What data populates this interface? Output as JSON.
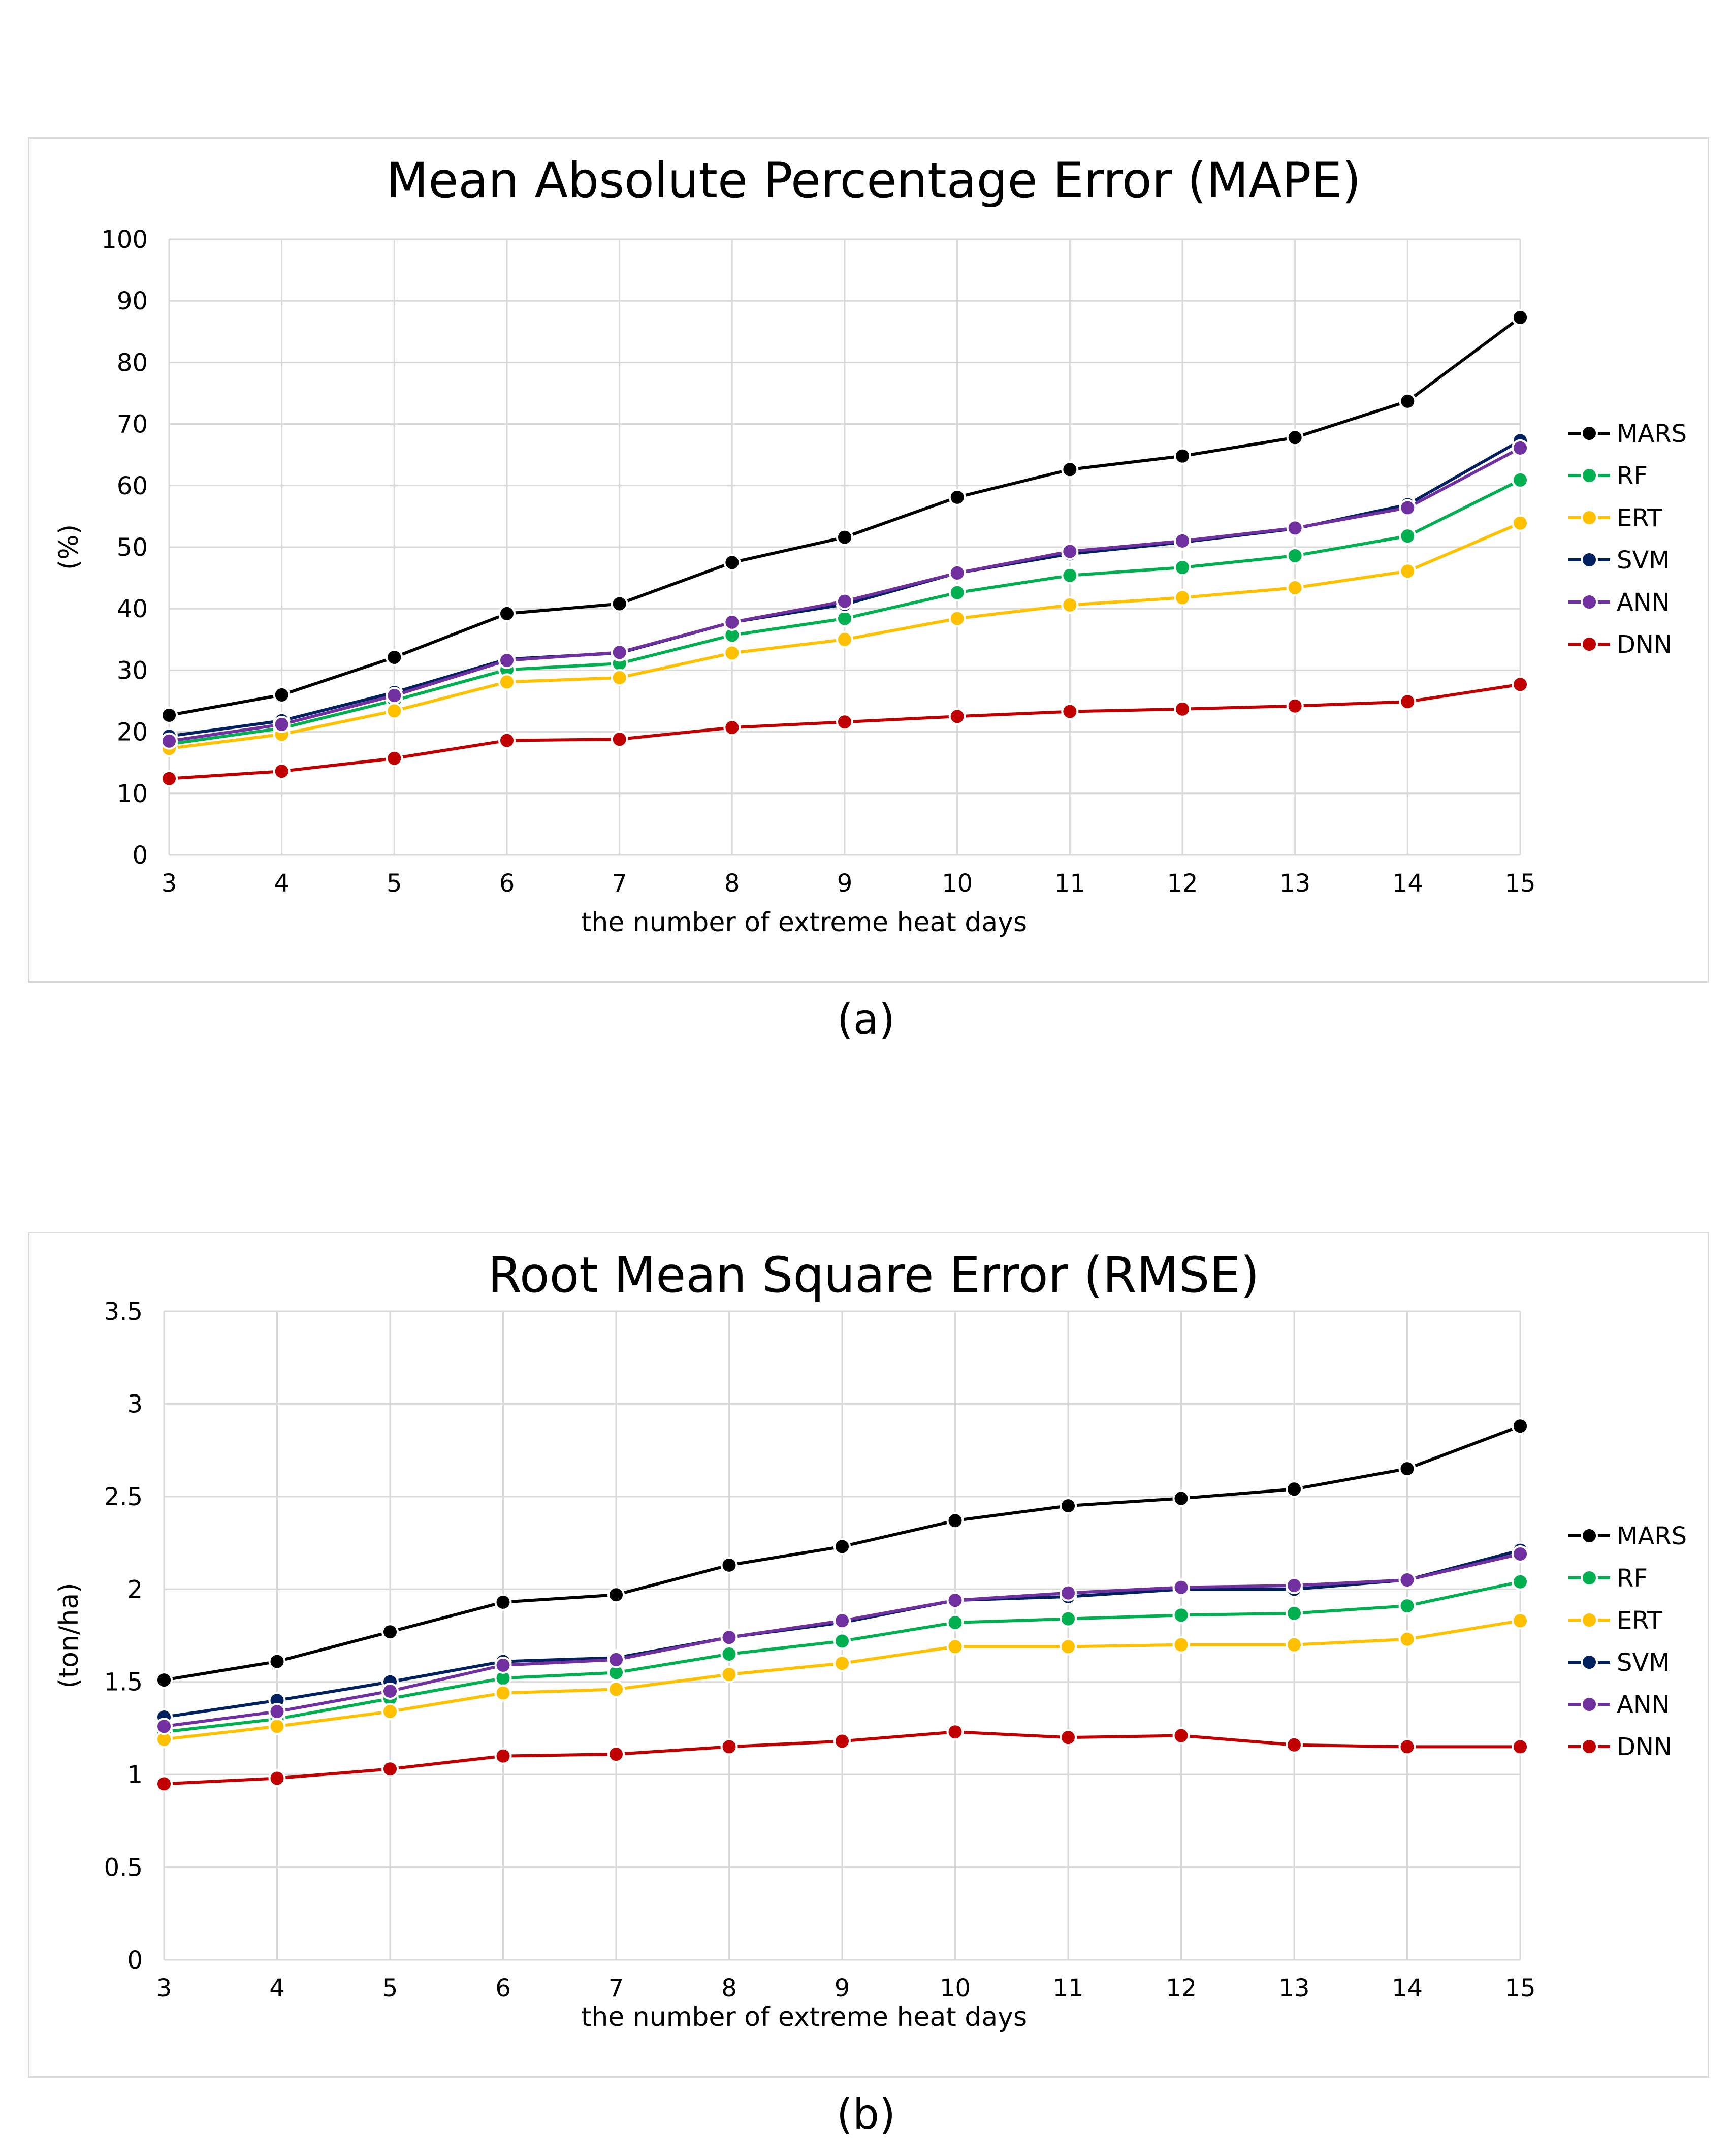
{
  "colors": {
    "MARS": "#000000",
    "RF": "#00b050",
    "ERT": "#ffc000",
    "SVM": "#002060",
    "ANN": "#7030a0",
    "DNN": "#c00000"
  },
  "chart_data": [
    {
      "id": "a",
      "type": "line",
      "title": "Mean Absolute Percentage Error (MAPE)",
      "xlabel": "the number of extreme heat days",
      "ylabel": "(%)",
      "caption": "(a)",
      "categories": [
        "3",
        "4",
        "5",
        "6",
        "7",
        "8",
        "9",
        "10",
        "11",
        "12",
        "13",
        "14",
        "15"
      ],
      "y_ticks": [
        "0",
        "10",
        "20",
        "30",
        "40",
        "50",
        "60",
        "70",
        "80",
        "90",
        "100"
      ],
      "ylim": [
        0,
        100
      ],
      "grid": true,
      "legend": "right",
      "series": [
        {
          "name": "MARS",
          "values": [
            22.7,
            26.0,
            32.1,
            39.2,
            40.8,
            47.5,
            51.6,
            58.1,
            62.6,
            64.8,
            67.8,
            73.7,
            87.3
          ]
        },
        {
          "name": "RF",
          "values": [
            18.0,
            20.6,
            25.1,
            30.1,
            31.1,
            35.7,
            38.4,
            42.6,
            45.4,
            46.7,
            48.6,
            51.8,
            60.9
          ]
        },
        {
          "name": "ERT",
          "values": [
            17.3,
            19.6,
            23.4,
            28.1,
            28.8,
            32.8,
            35.0,
            38.4,
            40.6,
            41.8,
            43.4,
            46.1,
            53.9
          ]
        },
        {
          "name": "SVM",
          "values": [
            19.3,
            21.8,
            26.4,
            31.8,
            32.8,
            37.8,
            40.7,
            45.8,
            48.9,
            50.8,
            53.0,
            56.9,
            67.3
          ]
        },
        {
          "name": "ANN",
          "values": [
            18.5,
            21.2,
            25.9,
            31.6,
            32.9,
            37.8,
            41.2,
            45.8,
            49.3,
            51.0,
            53.1,
            56.4,
            66.1
          ]
        },
        {
          "name": "DNN",
          "values": [
            12.4,
            13.6,
            15.7,
            18.6,
            18.8,
            20.7,
            21.6,
            22.5,
            23.3,
            23.7,
            24.2,
            24.9,
            27.7
          ]
        }
      ]
    },
    {
      "id": "b",
      "type": "line",
      "title": "Root Mean Square Error (RMSE)",
      "xlabel": "the number of extreme heat days",
      "ylabel": "(ton/ha)",
      "caption": "(b)",
      "categories": [
        "3",
        "4",
        "5",
        "6",
        "7",
        "8",
        "9",
        "10",
        "11",
        "12",
        "13",
        "14",
        "15"
      ],
      "y_ticks": [
        "0",
        "0.5",
        "1",
        "1.5",
        "2",
        "2.5",
        "3",
        "3.5"
      ],
      "ylim": [
        0,
        3.5
      ],
      "grid": true,
      "legend": "right",
      "series": [
        {
          "name": "MARS",
          "values": [
            1.51,
            1.61,
            1.77,
            1.93,
            1.97,
            2.13,
            2.23,
            2.37,
            2.45,
            2.49,
            2.54,
            2.65,
            2.88
          ]
        },
        {
          "name": "RF",
          "values": [
            1.23,
            1.3,
            1.41,
            1.52,
            1.55,
            1.65,
            1.72,
            1.82,
            1.84,
            1.86,
            1.87,
            1.91,
            2.04
          ]
        },
        {
          "name": "ERT",
          "values": [
            1.19,
            1.26,
            1.34,
            1.44,
            1.46,
            1.54,
            1.6,
            1.69,
            1.69,
            1.7,
            1.7,
            1.73,
            1.83
          ]
        },
        {
          "name": "SVM",
          "values": [
            1.31,
            1.4,
            1.5,
            1.61,
            1.63,
            1.74,
            1.82,
            1.94,
            1.96,
            2.0,
            2.0,
            2.05,
            2.21
          ]
        },
        {
          "name": "ANN",
          "values": [
            1.26,
            1.34,
            1.45,
            1.59,
            1.62,
            1.74,
            1.83,
            1.94,
            1.98,
            2.01,
            2.02,
            2.05,
            2.19
          ]
        },
        {
          "name": "DNN",
          "values": [
            0.95,
            0.98,
            1.03,
            1.1,
            1.11,
            1.15,
            1.18,
            1.23,
            1.2,
            1.21,
            1.16,
            1.15,
            1.15
          ]
        }
      ]
    }
  ]
}
